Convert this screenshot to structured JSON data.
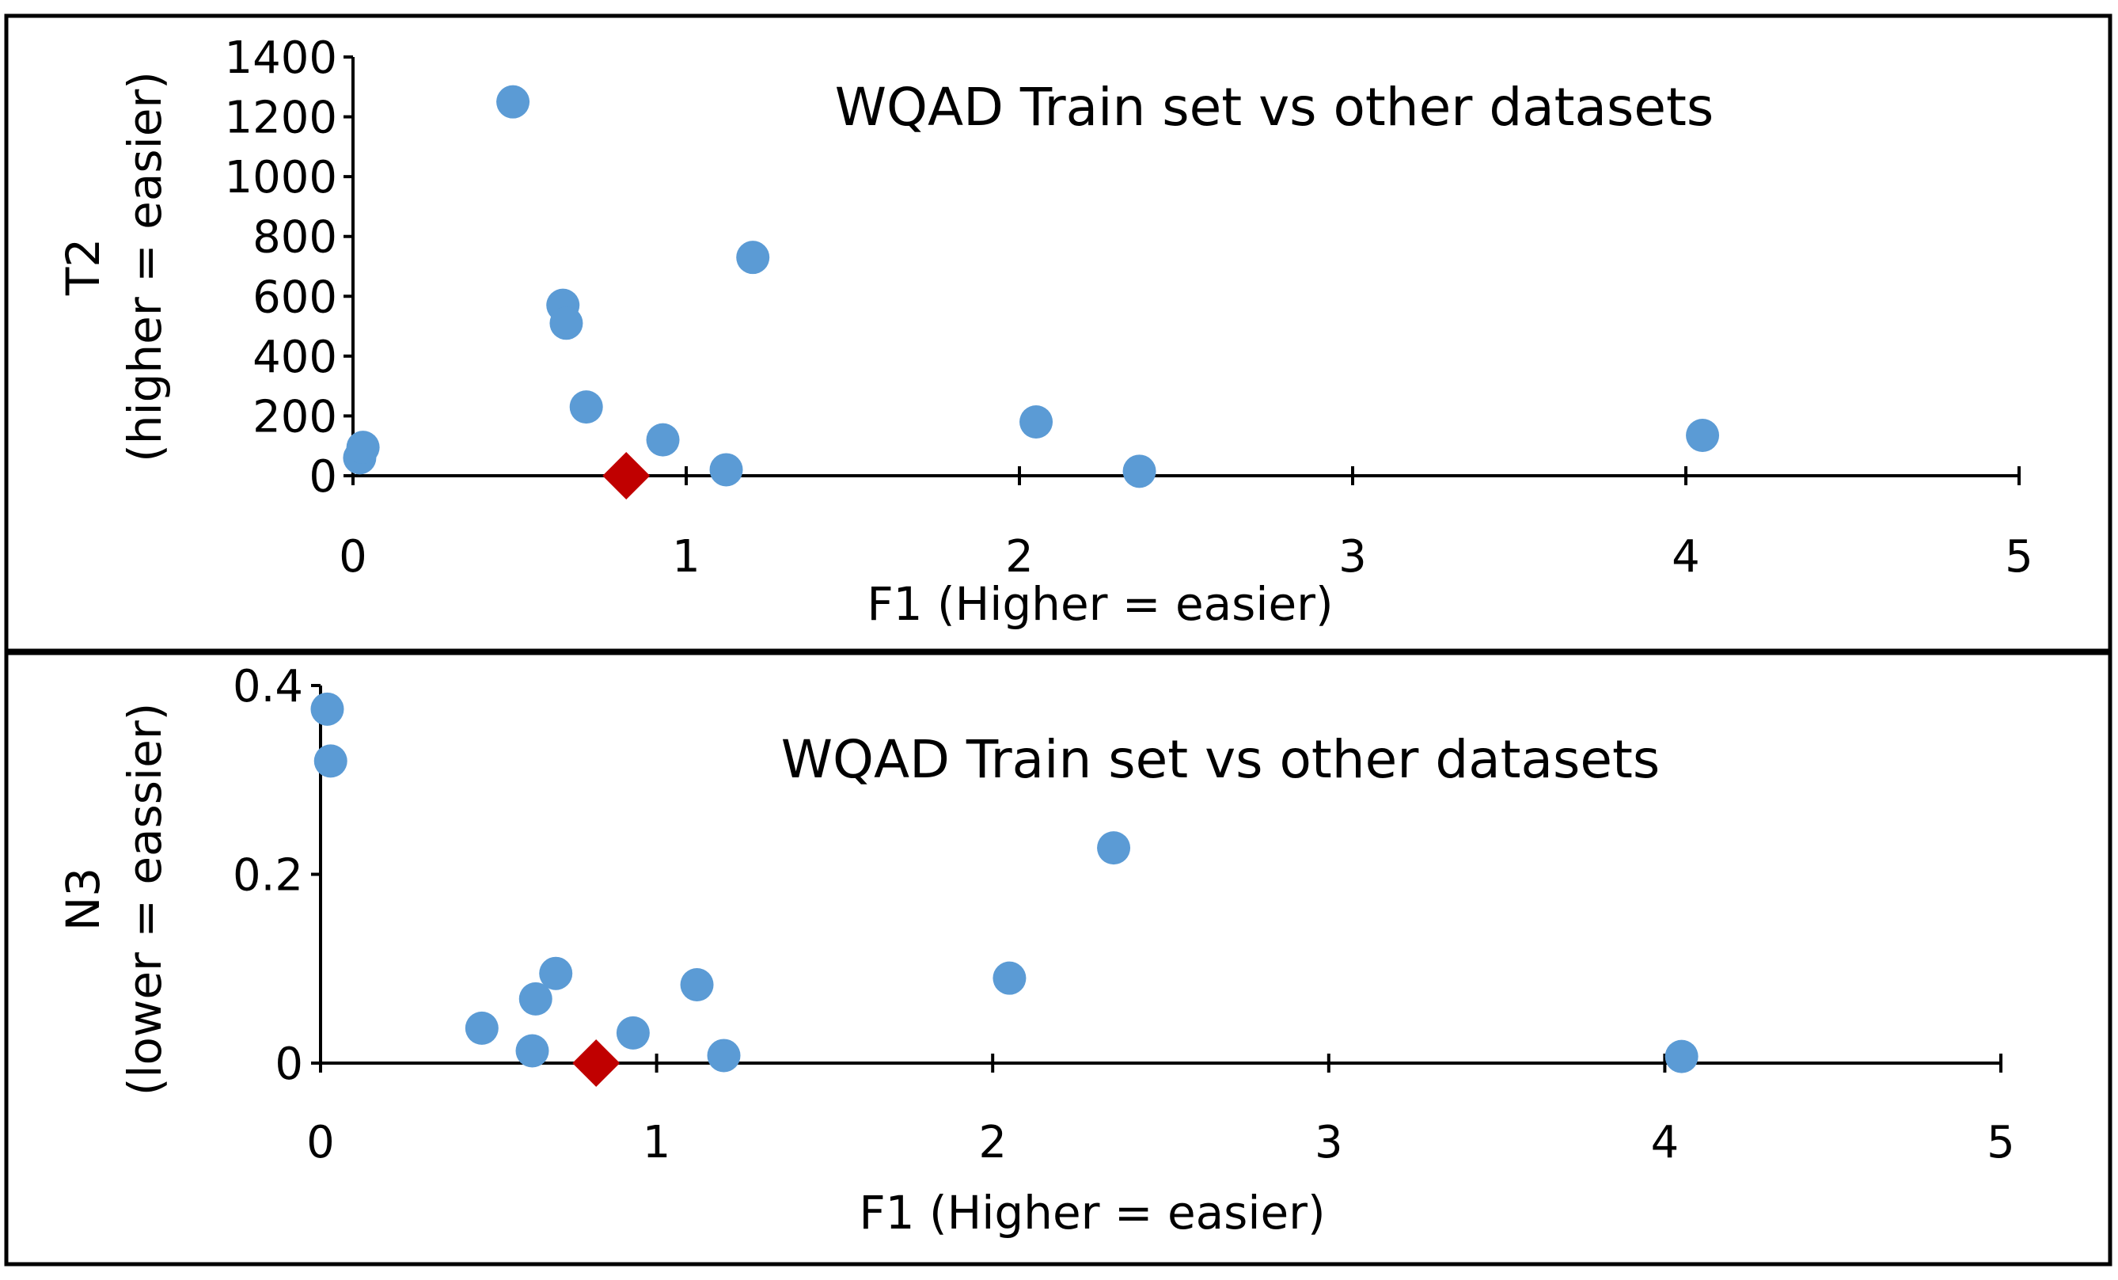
{
  "colors": {
    "series": "#5b9bd5",
    "highlight": "#c00000",
    "axis": "#000000",
    "background": "#ffffff"
  },
  "chart_data": [
    {
      "type": "scatter",
      "title": "WQAD Train set vs other datasets",
      "xlabel": "F1 (Higher = easier)",
      "ylabel_line1": "T2",
      "ylabel_line2": "(higher = easier)",
      "xlim": [
        0,
        5
      ],
      "ylim": [
        0,
        1400
      ],
      "xticks": [
        0,
        1,
        2,
        3,
        4,
        5
      ],
      "yticks": [
        0,
        200,
        400,
        600,
        800,
        1000,
        1200,
        1400
      ],
      "series": [
        {
          "name": "other datasets",
          "marker": "circle",
          "points": [
            [
              0.02,
              60
            ],
            [
              0.03,
              95
            ],
            [
              0.48,
              1250
            ],
            [
              0.63,
              570
            ],
            [
              0.64,
              510
            ],
            [
              0.7,
              230
            ],
            [
              0.93,
              120
            ],
            [
              1.12,
              20
            ],
            [
              1.2,
              730
            ],
            [
              2.05,
              180
            ],
            [
              2.36,
              15
            ],
            [
              4.05,
              135
            ]
          ]
        },
        {
          "name": "WQAD Train set",
          "marker": "diamond",
          "points": [
            [
              0.82,
              0
            ]
          ]
        }
      ]
    },
    {
      "type": "scatter",
      "title": "WQAD Train set vs other datasets",
      "xlabel": "F1 (Higher = easier)",
      "ylabel_line1": "N3",
      "ylabel_line2": "(lower = eassier)",
      "xlim": [
        0,
        5
      ],
      "ylim": [
        0,
        0.4
      ],
      "xticks": [
        0,
        1,
        2,
        3,
        4,
        5
      ],
      "yticks": [
        0,
        0.2,
        0.4
      ],
      "series": [
        {
          "name": "other datasets",
          "marker": "circle",
          "points": [
            [
              0.02,
              0.375
            ],
            [
              0.03,
              0.32
            ],
            [
              0.48,
              0.037
            ],
            [
              0.63,
              0.013
            ],
            [
              0.64,
              0.068
            ],
            [
              0.7,
              0.095
            ],
            [
              0.93,
              0.032
            ],
            [
              1.12,
              0.083
            ],
            [
              1.2,
              0.008
            ],
            [
              2.05,
              0.09
            ],
            [
              2.36,
              0.228
            ],
            [
              4.05,
              0.007
            ]
          ]
        },
        {
          "name": "WQAD Train set",
          "marker": "diamond",
          "points": [
            [
              0.82,
              0
            ]
          ]
        }
      ]
    }
  ]
}
